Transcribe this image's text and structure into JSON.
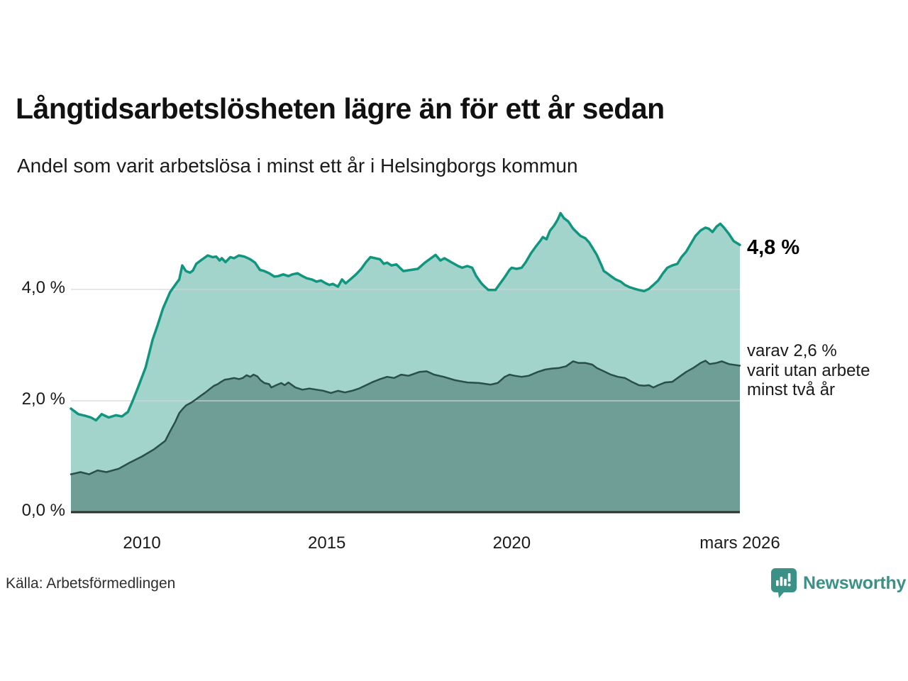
{
  "header": {
    "title": "Långtidsarbetslösheten lägre än för ett år sedan",
    "subtitle": "Andel som varit arbetslösa i minst ett år i Helsingborgs kommun"
  },
  "annotations": {
    "latest_total": "4,8 %",
    "breakdown_line1": "varav 2,6 %",
    "breakdown_line2": "varit utan arbete",
    "breakdown_line3": "minst två år"
  },
  "footer": {
    "source": "Källa: Arbetsförmedlingen",
    "brand": "Newsworthy"
  },
  "colors": {
    "accent_teal": "#12957f",
    "light_fill": "#a3d4cc",
    "dark_line": "#2a4f4a",
    "dark_fill": "#6f9e97",
    "grid": "#d6d6d6",
    "baseline": "#2e2e2e",
    "brand_teal": "#3b9186"
  },
  "chart_data": {
    "type": "area",
    "title": "Långtidsarbetslösheten lägre än för ett år sedan",
    "subtitle": "Andel som varit arbetslösa i minst ett år i Helsingborgs kommun",
    "unit": "%",
    "grid": true,
    "x_range": [
      2008.08,
      2026.17
    ],
    "ylim": [
      0,
      5.6
    ],
    "y_ticks": [
      {
        "label": "0,0 %",
        "value": 0
      },
      {
        "label": "2,0 %",
        "value": 2
      },
      {
        "label": "4,0 %",
        "value": 4
      }
    ],
    "x_ticks": [
      {
        "label": "2010",
        "year": 2010
      },
      {
        "label": "2015",
        "year": 2015
      },
      {
        "label": "2020",
        "year": 2020
      },
      {
        "label": "mars 2026",
        "year": 2026.17
      }
    ],
    "series": [
      {
        "name": "arbetslösa minst ett år",
        "end_label": "4,8 %",
        "end_value": 4.8,
        "line_color": "#12957f",
        "fill_color": "#a3d4cc",
        "line_width": 3.5,
        "points": [
          [
            2008.08,
            1.86
          ],
          [
            2008.28,
            1.76
          ],
          [
            2008.47,
            1.73
          ],
          [
            2008.62,
            1.7
          ],
          [
            2008.76,
            1.65
          ],
          [
            2008.91,
            1.76
          ],
          [
            2009.1,
            1.7
          ],
          [
            2009.29,
            1.74
          ],
          [
            2009.46,
            1.72
          ],
          [
            2009.62,
            1.8
          ],
          [
            2009.75,
            2.0
          ],
          [
            2009.9,
            2.25
          ],
          [
            2010.1,
            2.6
          ],
          [
            2010.29,
            3.1
          ],
          [
            2010.42,
            3.35
          ],
          [
            2010.57,
            3.66
          ],
          [
            2010.76,
            3.95
          ],
          [
            2010.92,
            4.1
          ],
          [
            2011.01,
            4.18
          ],
          [
            2011.09,
            4.43
          ],
          [
            2011.19,
            4.33
          ],
          [
            2011.3,
            4.3
          ],
          [
            2011.38,
            4.34
          ],
          [
            2011.47,
            4.46
          ],
          [
            2011.59,
            4.52
          ],
          [
            2011.78,
            4.61
          ],
          [
            2011.91,
            4.58
          ],
          [
            2012.01,
            4.59
          ],
          [
            2012.1,
            4.52
          ],
          [
            2012.16,
            4.56
          ],
          [
            2012.26,
            4.49
          ],
          [
            2012.39,
            4.58
          ],
          [
            2012.49,
            4.56
          ],
          [
            2012.62,
            4.61
          ],
          [
            2012.77,
            4.59
          ],
          [
            2012.93,
            4.54
          ],
          [
            2013.06,
            4.48
          ],
          [
            2013.19,
            4.35
          ],
          [
            2013.31,
            4.33
          ],
          [
            2013.44,
            4.29
          ],
          [
            2013.58,
            4.23
          ],
          [
            2013.69,
            4.24
          ],
          [
            2013.82,
            4.27
          ],
          [
            2013.96,
            4.24
          ],
          [
            2014.07,
            4.27
          ],
          [
            2014.21,
            4.29
          ],
          [
            2014.34,
            4.24
          ],
          [
            2014.46,
            4.2
          ],
          [
            2014.59,
            4.18
          ],
          [
            2014.72,
            4.14
          ],
          [
            2014.84,
            4.16
          ],
          [
            2014.97,
            4.11
          ],
          [
            2015.07,
            4.08
          ],
          [
            2015.16,
            4.1
          ],
          [
            2015.3,
            4.05
          ],
          [
            2015.41,
            4.18
          ],
          [
            2015.51,
            4.11
          ],
          [
            2015.6,
            4.16
          ],
          [
            2015.79,
            4.27
          ],
          [
            2015.93,
            4.37
          ],
          [
            2016.06,
            4.49
          ],
          [
            2016.18,
            4.58
          ],
          [
            2016.31,
            4.56
          ],
          [
            2016.44,
            4.54
          ],
          [
            2016.54,
            4.46
          ],
          [
            2016.63,
            4.48
          ],
          [
            2016.75,
            4.43
          ],
          [
            2016.88,
            4.45
          ],
          [
            2017.07,
            4.33
          ],
          [
            2017.27,
            4.35
          ],
          [
            2017.46,
            4.37
          ],
          [
            2017.65,
            4.48
          ],
          [
            2017.94,
            4.62
          ],
          [
            2018.07,
            4.52
          ],
          [
            2018.18,
            4.56
          ],
          [
            2018.36,
            4.49
          ],
          [
            2018.55,
            4.42
          ],
          [
            2018.66,
            4.39
          ],
          [
            2018.8,
            4.42
          ],
          [
            2018.93,
            4.39
          ],
          [
            2019.04,
            4.24
          ],
          [
            2019.18,
            4.11
          ],
          [
            2019.27,
            4.05
          ],
          [
            2019.37,
            3.99
          ],
          [
            2019.56,
            3.99
          ],
          [
            2019.69,
            4.11
          ],
          [
            2019.81,
            4.22
          ],
          [
            2019.94,
            4.35
          ],
          [
            2020.0,
            4.39
          ],
          [
            2020.13,
            4.37
          ],
          [
            2020.27,
            4.39
          ],
          [
            2020.38,
            4.49
          ],
          [
            2020.52,
            4.65
          ],
          [
            2020.65,
            4.77
          ],
          [
            2020.77,
            4.87
          ],
          [
            2020.84,
            4.94
          ],
          [
            2020.94,
            4.9
          ],
          [
            2021.03,
            5.05
          ],
          [
            2021.15,
            5.15
          ],
          [
            2021.24,
            5.25
          ],
          [
            2021.32,
            5.37
          ],
          [
            2021.41,
            5.28
          ],
          [
            2021.53,
            5.22
          ],
          [
            2021.66,
            5.09
          ],
          [
            2021.86,
            4.96
          ],
          [
            2021.99,
            4.92
          ],
          [
            2022.1,
            4.84
          ],
          [
            2022.3,
            4.62
          ],
          [
            2022.43,
            4.43
          ],
          [
            2022.49,
            4.33
          ],
          [
            2022.58,
            4.29
          ],
          [
            2022.68,
            4.24
          ],
          [
            2022.81,
            4.18
          ],
          [
            2022.95,
            4.14
          ],
          [
            2023.06,
            4.08
          ],
          [
            2023.19,
            4.04
          ],
          [
            2023.33,
            4.01
          ],
          [
            2023.44,
            3.99
          ],
          [
            2023.58,
            3.97
          ],
          [
            2023.71,
            4.01
          ],
          [
            2023.83,
            4.08
          ],
          [
            2023.96,
            4.16
          ],
          [
            2024.09,
            4.29
          ],
          [
            2024.21,
            4.39
          ],
          [
            2024.34,
            4.43
          ],
          [
            2024.48,
            4.46
          ],
          [
            2024.59,
            4.58
          ],
          [
            2024.72,
            4.68
          ],
          [
            2024.86,
            4.84
          ],
          [
            2024.97,
            4.96
          ],
          [
            2025.11,
            5.06
          ],
          [
            2025.24,
            5.11
          ],
          [
            2025.33,
            5.09
          ],
          [
            2025.43,
            5.03
          ],
          [
            2025.54,
            5.13
          ],
          [
            2025.64,
            5.18
          ],
          [
            2025.74,
            5.11
          ],
          [
            2025.87,
            5.0
          ],
          [
            2026.0,
            4.87
          ],
          [
            2026.17,
            4.8
          ]
        ]
      },
      {
        "name": "utan arbete minst två år",
        "end_label": "varav 2,6 %",
        "end_value": 2.6,
        "line_color": "#2a4f4a",
        "fill_color": "#6f9e97",
        "line_width": 2.5,
        "points": [
          [
            2008.08,
            0.68
          ],
          [
            2008.34,
            0.72
          ],
          [
            2008.57,
            0.68
          ],
          [
            2008.8,
            0.75
          ],
          [
            2009.04,
            0.72
          ],
          [
            2009.37,
            0.78
          ],
          [
            2009.67,
            0.89
          ],
          [
            2010.0,
            1.0
          ],
          [
            2010.33,
            1.13
          ],
          [
            2010.63,
            1.28
          ],
          [
            2010.76,
            1.45
          ],
          [
            2010.9,
            1.62
          ],
          [
            2011.01,
            1.78
          ],
          [
            2011.11,
            1.86
          ],
          [
            2011.2,
            1.92
          ],
          [
            2011.34,
            1.97
          ],
          [
            2011.47,
            2.03
          ],
          [
            2011.59,
            2.09
          ],
          [
            2011.72,
            2.15
          ],
          [
            2011.85,
            2.22
          ],
          [
            2011.95,
            2.27
          ],
          [
            2012.05,
            2.3
          ],
          [
            2012.14,
            2.34
          ],
          [
            2012.24,
            2.38
          ],
          [
            2012.35,
            2.39
          ],
          [
            2012.49,
            2.41
          ],
          [
            2012.62,
            2.39
          ],
          [
            2012.73,
            2.41
          ],
          [
            2012.83,
            2.46
          ],
          [
            2012.93,
            2.43
          ],
          [
            2013.02,
            2.47
          ],
          [
            2013.12,
            2.44
          ],
          [
            2013.21,
            2.37
          ],
          [
            2013.31,
            2.32
          ],
          [
            2013.44,
            2.3
          ],
          [
            2013.5,
            2.24
          ],
          [
            2013.63,
            2.28
          ],
          [
            2013.77,
            2.32
          ],
          [
            2013.86,
            2.28
          ],
          [
            2013.96,
            2.33
          ],
          [
            2014.15,
            2.24
          ],
          [
            2014.34,
            2.2
          ],
          [
            2014.53,
            2.22
          ],
          [
            2014.72,
            2.2
          ],
          [
            2014.91,
            2.18
          ],
          [
            2015.11,
            2.14
          ],
          [
            2015.3,
            2.18
          ],
          [
            2015.49,
            2.15
          ],
          [
            2015.68,
            2.18
          ],
          [
            2015.87,
            2.22
          ],
          [
            2016.06,
            2.28
          ],
          [
            2016.25,
            2.34
          ],
          [
            2016.44,
            2.39
          ],
          [
            2016.63,
            2.43
          ],
          [
            2016.82,
            2.41
          ],
          [
            2017.01,
            2.47
          ],
          [
            2017.21,
            2.45
          ],
          [
            2017.51,
            2.52
          ],
          [
            2017.7,
            2.53
          ],
          [
            2017.9,
            2.47
          ],
          [
            2018.16,
            2.43
          ],
          [
            2018.47,
            2.37
          ],
          [
            2018.8,
            2.33
          ],
          [
            2019.12,
            2.32
          ],
          [
            2019.43,
            2.29
          ],
          [
            2019.62,
            2.32
          ],
          [
            2019.81,
            2.43
          ],
          [
            2019.94,
            2.47
          ],
          [
            2020.08,
            2.45
          ],
          [
            2020.27,
            2.43
          ],
          [
            2020.46,
            2.45
          ],
          [
            2020.71,
            2.52
          ],
          [
            2020.9,
            2.56
          ],
          [
            2021.09,
            2.58
          ],
          [
            2021.28,
            2.59
          ],
          [
            2021.47,
            2.62
          ],
          [
            2021.66,
            2.71
          ],
          [
            2021.8,
            2.68
          ],
          [
            2021.99,
            2.68
          ],
          [
            2022.18,
            2.65
          ],
          [
            2022.3,
            2.59
          ],
          [
            2022.49,
            2.53
          ],
          [
            2022.68,
            2.47
          ],
          [
            2022.87,
            2.43
          ],
          [
            2023.06,
            2.41
          ],
          [
            2023.25,
            2.34
          ],
          [
            2023.44,
            2.28
          ],
          [
            2023.58,
            2.27
          ],
          [
            2023.71,
            2.28
          ],
          [
            2023.83,
            2.24
          ],
          [
            2023.96,
            2.28
          ],
          [
            2024.15,
            2.33
          ],
          [
            2024.34,
            2.34
          ],
          [
            2024.53,
            2.43
          ],
          [
            2024.72,
            2.52
          ],
          [
            2024.91,
            2.59
          ],
          [
            2025.11,
            2.68
          ],
          [
            2025.24,
            2.72
          ],
          [
            2025.35,
            2.66
          ],
          [
            2025.54,
            2.68
          ],
          [
            2025.68,
            2.71
          ],
          [
            2025.87,
            2.66
          ],
          [
            2026.17,
            2.63
          ]
        ]
      }
    ]
  }
}
